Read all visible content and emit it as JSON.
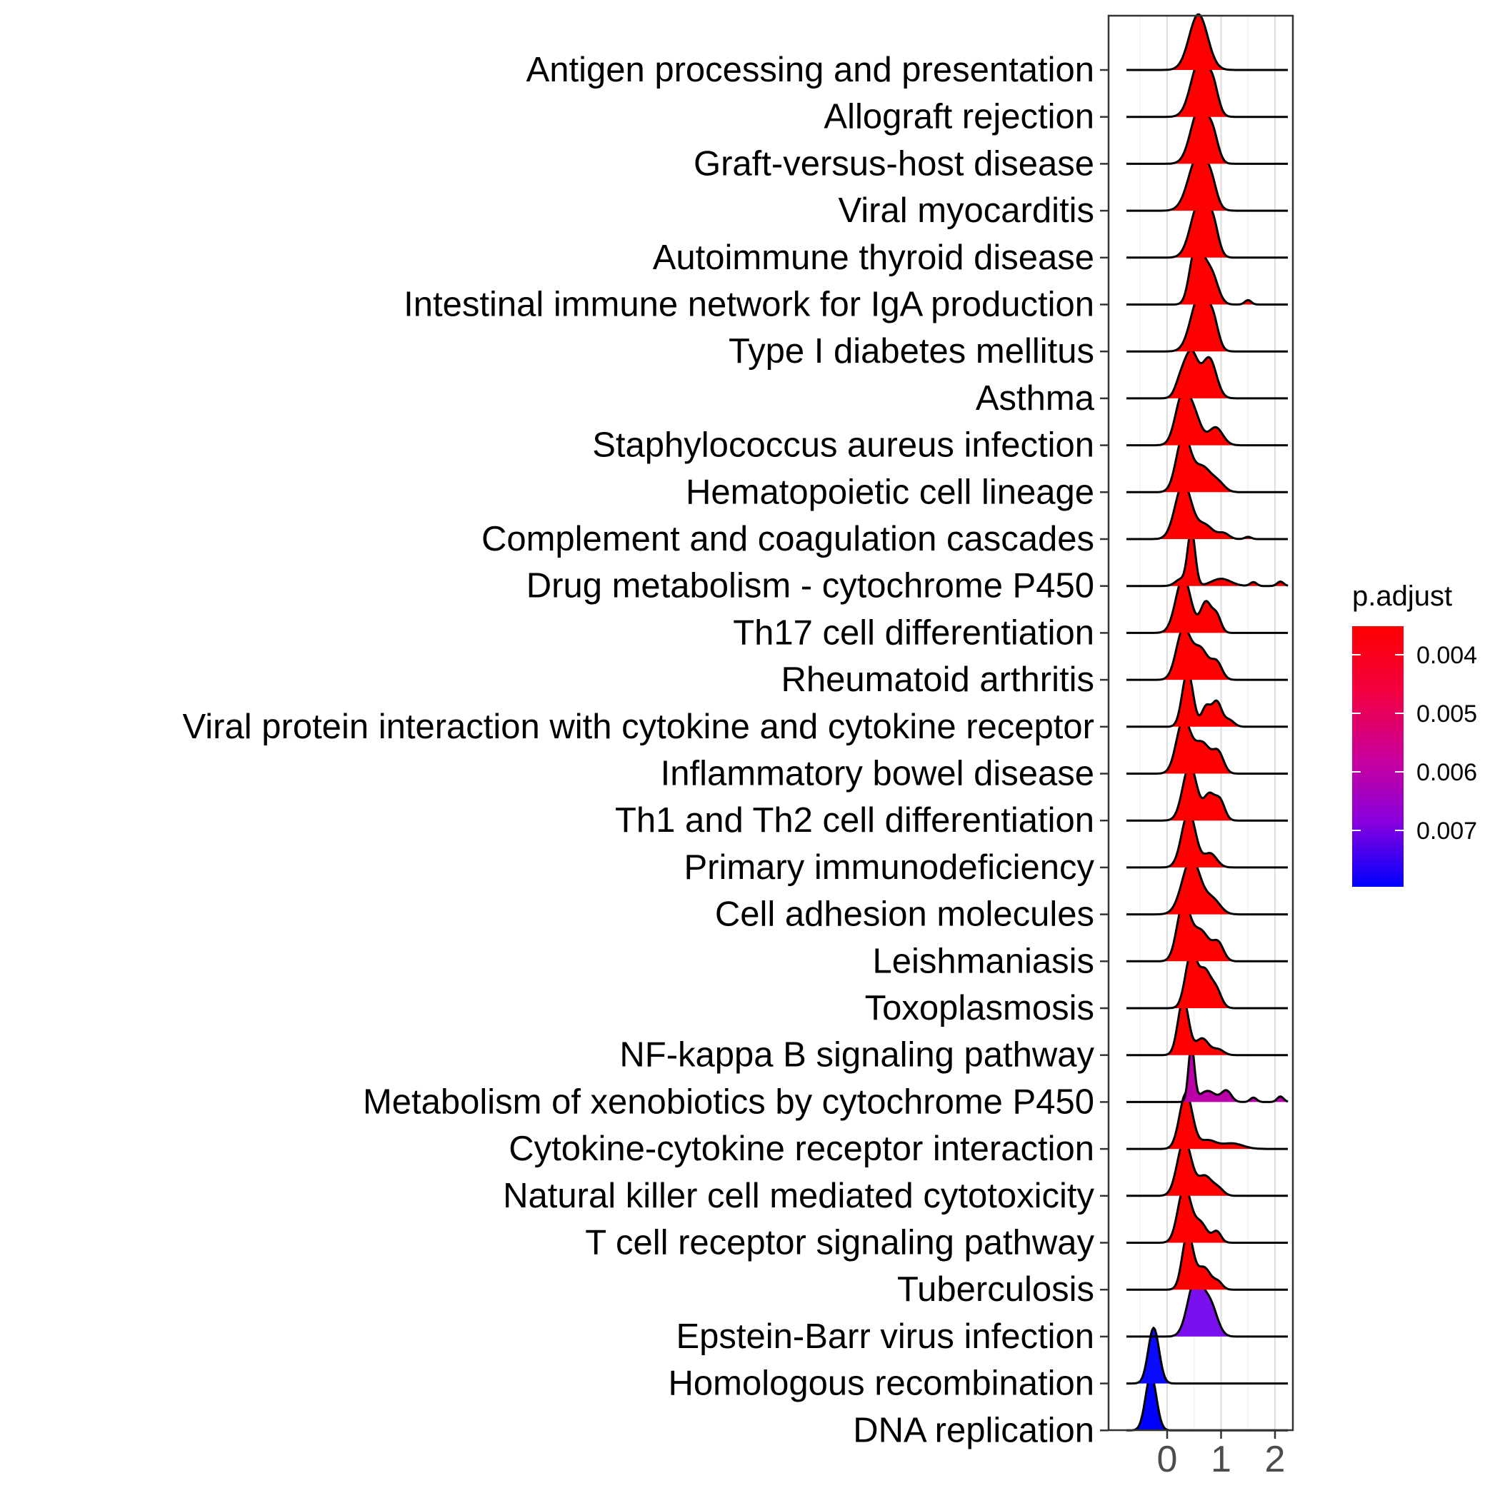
{
  "chart_data": {
    "type": "ridgeline",
    "title": "",
    "xlabel": "",
    "ylabel": "",
    "x_ticks": [
      0,
      1,
      2
    ],
    "xlim": [
      -0.9,
      2.4
    ],
    "grid": true,
    "legend": {
      "title": "p.adjust",
      "position": "right",
      "type": "colorbar",
      "ticks": [
        "0.004",
        "0.005",
        "0.006",
        "0.007"
      ],
      "color_low": "#ff0000",
      "color_high": "#0000ff"
    },
    "categories": [
      "Antigen processing and presentation",
      "Allograft rejection",
      "Graft-versus-host disease",
      "Viral myocarditis",
      "Autoimmune thyroid disease",
      "Intestinal immune network for IgA production",
      "Type I diabetes mellitus",
      "Asthma",
      "Staphylococcus aureus infection",
      "Hematopoietic cell lineage",
      "Complement and coagulation cascades",
      "Drug metabolism - cytochrome P450",
      "Th17 cell differentiation",
      "Rheumatoid arthritis",
      "Viral protein interaction with cytokine and cytokine receptor",
      "Inflammatory bowel disease",
      "Th1 and Th2 cell differentiation",
      "Primary immunodeficiency",
      "Cell adhesion molecules",
      "Leishmaniasis",
      "Toxoplasmosis",
      "NF-kappa B signaling pathway",
      "Metabolism of xenobiotics by cytochrome P450",
      "Cytokine-cytokine receptor interaction",
      "Natural killer cell mediated cytotoxicity",
      "T cell receptor signaling pathway",
      "Tuberculosis",
      "Epstein-Barr virus infection",
      "Homologous recombination",
      "DNA replication"
    ],
    "series": [
      {
        "fill": "#ff0000",
        "peaks": [
          [
            0.58,
            1.0,
            0.17
          ]
        ]
      },
      {
        "fill": "#ff0000",
        "peaks": [
          [
            0.6,
            1.0,
            0.16
          ],
          [
            0.85,
            0.45,
            0.1
          ]
        ]
      },
      {
        "fill": "#ff0000",
        "peaks": [
          [
            0.6,
            1.0,
            0.16
          ],
          [
            0.85,
            0.4,
            0.1
          ]
        ]
      },
      {
        "fill": "#ff0000",
        "peaks": [
          [
            0.58,
            1.0,
            0.18
          ],
          [
            0.82,
            0.3,
            0.1
          ]
        ]
      },
      {
        "fill": "#ff0000",
        "peaks": [
          [
            0.6,
            1.0,
            0.16
          ],
          [
            0.85,
            0.5,
            0.1
          ]
        ]
      },
      {
        "fill": "#ff0000",
        "peaks": [
          [
            0.5,
            0.8,
            0.1
          ],
          [
            0.82,
            0.55,
            0.12
          ],
          [
            0.64,
            0.5,
            0.1
          ],
          [
            1.5,
            0.08,
            0.06
          ]
        ]
      },
      {
        "fill": "#ff0000",
        "peaks": [
          [
            0.6,
            1.0,
            0.16
          ],
          [
            0.85,
            0.45,
            0.1
          ]
        ]
      },
      {
        "fill": "#ff0000",
        "peaks": [
          [
            0.45,
            0.8,
            0.12
          ],
          [
            0.78,
            0.72,
            0.13
          ],
          [
            0.25,
            0.3,
            0.1
          ]
        ]
      },
      {
        "fill": "#ff0000",
        "peaks": [
          [
            0.28,
            0.85,
            0.13
          ],
          [
            0.5,
            0.5,
            0.13
          ],
          [
            0.9,
            0.32,
            0.13
          ]
        ]
      },
      {
        "fill": "#ff0000",
        "peaks": [
          [
            0.3,
            1.0,
            0.13
          ],
          [
            0.65,
            0.45,
            0.16
          ],
          [
            0.95,
            0.15,
            0.12
          ]
        ]
      },
      {
        "fill": "#ff0000",
        "peaks": [
          [
            0.3,
            1.0,
            0.15
          ],
          [
            0.7,
            0.25,
            0.15
          ],
          [
            1.05,
            0.1,
            0.1
          ],
          [
            1.5,
            0.04,
            0.06
          ]
        ]
      },
      {
        "fill": "#ff0000",
        "peaks": [
          [
            0.45,
            1.0,
            0.07
          ],
          [
            0.25,
            0.12,
            0.1
          ],
          [
            1.0,
            0.13,
            0.18
          ],
          [
            1.6,
            0.07,
            0.06
          ],
          [
            2.1,
            0.08,
            0.06
          ]
        ]
      },
      {
        "fill": "#ff0000",
        "peaks": [
          [
            0.3,
            1.0,
            0.14
          ],
          [
            0.72,
            0.55,
            0.1
          ],
          [
            0.92,
            0.3,
            0.08
          ]
        ]
      },
      {
        "fill": "#ff0000",
        "peaks": [
          [
            0.3,
            0.9,
            0.13
          ],
          [
            0.62,
            0.55,
            0.14
          ],
          [
            0.92,
            0.3,
            0.1
          ]
        ]
      },
      {
        "fill": "#ff0000",
        "peaks": [
          [
            0.38,
            1.0,
            0.1
          ],
          [
            0.72,
            0.35,
            0.08
          ],
          [
            0.92,
            0.45,
            0.09
          ],
          [
            1.15,
            0.12,
            0.09
          ]
        ]
      },
      {
        "fill": "#ff0000",
        "peaks": [
          [
            0.3,
            0.95,
            0.13
          ],
          [
            0.65,
            0.55,
            0.15
          ],
          [
            0.95,
            0.35,
            0.1
          ]
        ]
      },
      {
        "fill": "#ff0000",
        "peaks": [
          [
            0.42,
            1.0,
            0.13
          ],
          [
            0.78,
            0.45,
            0.1
          ],
          [
            0.98,
            0.35,
            0.09
          ]
        ]
      },
      {
        "fill": "#ff0000",
        "peaks": [
          [
            0.4,
            1.0,
            0.13
          ],
          [
            0.8,
            0.25,
            0.12
          ]
        ]
      },
      {
        "fill": "#ff0000",
        "peaks": [
          [
            0.45,
            1.0,
            0.17
          ],
          [
            0.85,
            0.25,
            0.14
          ]
        ]
      },
      {
        "fill": "#ff0000",
        "peaks": [
          [
            0.3,
            1.0,
            0.12
          ],
          [
            0.62,
            0.55,
            0.16
          ],
          [
            0.95,
            0.3,
            0.1
          ]
        ]
      },
      {
        "fill": "#ff0000",
        "peaks": [
          [
            0.45,
            1.0,
            0.11
          ],
          [
            0.7,
            0.6,
            0.1
          ],
          [
            0.9,
            0.35,
            0.1
          ]
        ]
      },
      {
        "fill": "#ff0000",
        "peaks": [
          [
            0.3,
            1.0,
            0.1
          ],
          [
            0.65,
            0.3,
            0.12
          ],
          [
            0.95,
            0.1,
            0.1
          ]
        ]
      },
      {
        "fill": "#bb00aa",
        "peaks": [
          [
            0.45,
            1.0,
            0.055
          ],
          [
            0.75,
            0.2,
            0.15
          ],
          [
            1.1,
            0.2,
            0.09
          ],
          [
            1.6,
            0.08,
            0.06
          ],
          [
            2.1,
            0.1,
            0.06
          ]
        ]
      },
      {
        "fill": "#ff0000",
        "peaks": [
          [
            0.35,
            1.0,
            0.12
          ],
          [
            0.75,
            0.15,
            0.15
          ],
          [
            1.2,
            0.1,
            0.2
          ]
        ]
      },
      {
        "fill": "#ff0000",
        "peaks": [
          [
            0.32,
            1.0,
            0.13
          ],
          [
            0.7,
            0.35,
            0.13
          ],
          [
            0.95,
            0.12,
            0.1
          ]
        ]
      },
      {
        "fill": "#ff0000",
        "peaks": [
          [
            0.32,
            1.0,
            0.12
          ],
          [
            0.62,
            0.35,
            0.12
          ],
          [
            0.92,
            0.2,
            0.08
          ]
        ]
      },
      {
        "fill": "#ff0000",
        "peaks": [
          [
            0.38,
            1.0,
            0.1
          ],
          [
            0.68,
            0.4,
            0.13
          ],
          [
            0.95,
            0.12,
            0.08
          ]
        ]
      },
      {
        "fill": "#7a10ee",
        "peaks": [
          [
            0.52,
            1.0,
            0.14
          ],
          [
            0.8,
            0.55,
            0.13
          ]
        ]
      },
      {
        "fill": "#0a0aff",
        "peaks": [
          [
            -0.25,
            1.0,
            0.1
          ]
        ]
      },
      {
        "fill": "#0000ff",
        "peaks": [
          [
            -0.3,
            1.0,
            0.1
          ]
        ]
      }
    ]
  }
}
